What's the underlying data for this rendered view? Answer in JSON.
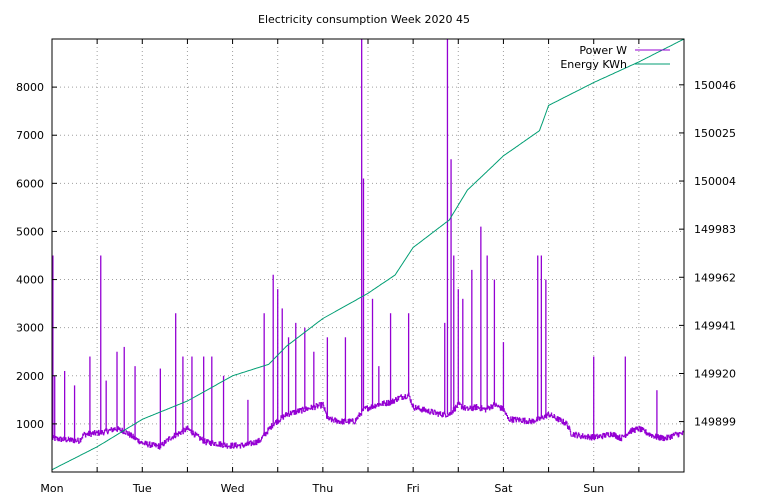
{
  "chart_data": {
    "type": "line",
    "title": "Electricity consumption Week 2020 45",
    "x_categories": [
      "Mon",
      "Tue",
      "Wed",
      "Thu",
      "Fri",
      "Sat",
      "Sun"
    ],
    "xlim_days": [
      0,
      7
    ],
    "y_left": {
      "ticks": [
        1000,
        2000,
        3000,
        4000,
        5000,
        6000,
        7000,
        8000
      ],
      "range": [
        0,
        9000
      ]
    },
    "y_right": {
      "ticks": [
        149899,
        149920,
        149941,
        149962,
        149983,
        150004,
        150025,
        150046
      ],
      "range": [
        149877,
        150066
      ]
    },
    "grid": true,
    "legend": "top-right",
    "series": [
      {
        "name": "Power W",
        "axis": "left",
        "color": "#9400d3",
        "base": [
          [
            0,
            700
          ],
          [
            0.1,
            680
          ],
          [
            0.3,
            650
          ],
          [
            0.35,
            780
          ],
          [
            0.45,
            800
          ],
          [
            0.55,
            820
          ],
          [
            0.65,
            870
          ],
          [
            0.7,
            900
          ],
          [
            0.8,
            850
          ],
          [
            0.9,
            720
          ],
          [
            1.0,
            600
          ],
          [
            1.1,
            560
          ],
          [
            1.2,
            530
          ],
          [
            1.3,
            700
          ],
          [
            1.4,
            800
          ],
          [
            1.5,
            900
          ],
          [
            1.6,
            750
          ],
          [
            1.7,
            620
          ],
          [
            1.8,
            600
          ],
          [
            1.95,
            550
          ],
          [
            2.05,
            550
          ],
          [
            2.15,
            560
          ],
          [
            2.3,
            650
          ],
          [
            2.45,
            1000
          ],
          [
            2.6,
            1200
          ],
          [
            2.7,
            1250
          ],
          [
            2.8,
            1300
          ],
          [
            2.9,
            1350
          ],
          [
            3.0,
            1400
          ],
          [
            3.05,
            1100
          ],
          [
            3.2,
            1050
          ],
          [
            3.35,
            1050
          ],
          [
            3.45,
            1300
          ],
          [
            3.6,
            1400
          ],
          [
            3.75,
            1450
          ],
          [
            3.85,
            1550
          ],
          [
            3.95,
            1600
          ],
          [
            4.0,
            1350
          ],
          [
            4.1,
            1300
          ],
          [
            4.2,
            1250
          ],
          [
            4.3,
            1200
          ],
          [
            4.4,
            1200
          ],
          [
            4.5,
            1400
          ],
          [
            4.6,
            1300
          ],
          [
            4.7,
            1350
          ],
          [
            4.8,
            1300
          ],
          [
            4.9,
            1400
          ],
          [
            5.0,
            1300
          ],
          [
            5.05,
            1100
          ],
          [
            5.2,
            1080
          ],
          [
            5.3,
            1050
          ],
          [
            5.4,
            1100
          ],
          [
            5.5,
            1200
          ],
          [
            5.6,
            1100
          ],
          [
            5.7,
            1000
          ],
          [
            5.75,
            800
          ],
          [
            5.85,
            750
          ],
          [
            6.0,
            720
          ],
          [
            6.1,
            750
          ],
          [
            6.2,
            800
          ],
          [
            6.3,
            700
          ],
          [
            6.4,
            850
          ],
          [
            6.5,
            900
          ],
          [
            6.6,
            800
          ],
          [
            6.7,
            720
          ],
          [
            6.8,
            700
          ],
          [
            6.9,
            780
          ],
          [
            7.0,
            800
          ]
        ],
        "spikes": [
          [
            0.01,
            4500
          ],
          [
            0.03,
            2000
          ],
          [
            0.14,
            2100
          ],
          [
            0.25,
            1800
          ],
          [
            0.42,
            2400
          ],
          [
            0.54,
            4500
          ],
          [
            0.6,
            1900
          ],
          [
            0.72,
            2500
          ],
          [
            0.8,
            2600
          ],
          [
            0.92,
            2200
          ],
          [
            1.2,
            2150
          ],
          [
            1.37,
            3300
          ],
          [
            1.45,
            2400
          ],
          [
            1.55,
            2400
          ],
          [
            1.68,
            2400
          ],
          [
            1.77,
            2400
          ],
          [
            1.9,
            2000
          ],
          [
            2.17,
            1500
          ],
          [
            2.35,
            3300
          ],
          [
            2.45,
            4100
          ],
          [
            2.5,
            3800
          ],
          [
            2.55,
            3400
          ],
          [
            2.62,
            2800
          ],
          [
            2.7,
            3100
          ],
          [
            2.8,
            3000
          ],
          [
            2.9,
            2500
          ],
          [
            3.05,
            2800
          ],
          [
            3.25,
            2800
          ],
          [
            3.43,
            9000
          ],
          [
            3.45,
            6100
          ],
          [
            3.55,
            3600
          ],
          [
            3.62,
            2200
          ],
          [
            3.75,
            3300
          ],
          [
            3.95,
            3300
          ],
          [
            4.35,
            3100
          ],
          [
            4.38,
            9000
          ],
          [
            4.42,
            6500
          ],
          [
            4.45,
            4500
          ],
          [
            4.5,
            3800
          ],
          [
            4.55,
            3600
          ],
          [
            4.65,
            4200
          ],
          [
            4.75,
            5100
          ],
          [
            4.82,
            4500
          ],
          [
            4.9,
            4000
          ],
          [
            5.0,
            2700
          ],
          [
            5.38,
            4500
          ],
          [
            5.42,
            4500
          ],
          [
            5.47,
            4000
          ],
          [
            6.0,
            2400
          ],
          [
            6.35,
            2400
          ],
          [
            6.7,
            1700
          ]
        ]
      },
      {
        "name": "Energy KWh",
        "axis": "right",
        "color": "#009e73",
        "points": [
          [
            0,
            149878
          ],
          [
            0.5,
            149888
          ],
          [
            1.0,
            149900
          ],
          [
            1.5,
            149908
          ],
          [
            2.0,
            149919
          ],
          [
            2.4,
            149924
          ],
          [
            2.6,
            149932
          ],
          [
            3.0,
            149944
          ],
          [
            3.5,
            149955
          ],
          [
            3.8,
            149963
          ],
          [
            4.0,
            149975
          ],
          [
            4.4,
            149987
          ],
          [
            4.6,
            150000
          ],
          [
            5.0,
            150015
          ],
          [
            5.4,
            150026
          ],
          [
            5.5,
            150037
          ],
          [
            5.8,
            150043
          ],
          [
            6.0,
            150047
          ],
          [
            6.5,
            150056
          ],
          [
            7.0,
            150066
          ]
        ]
      }
    ]
  }
}
